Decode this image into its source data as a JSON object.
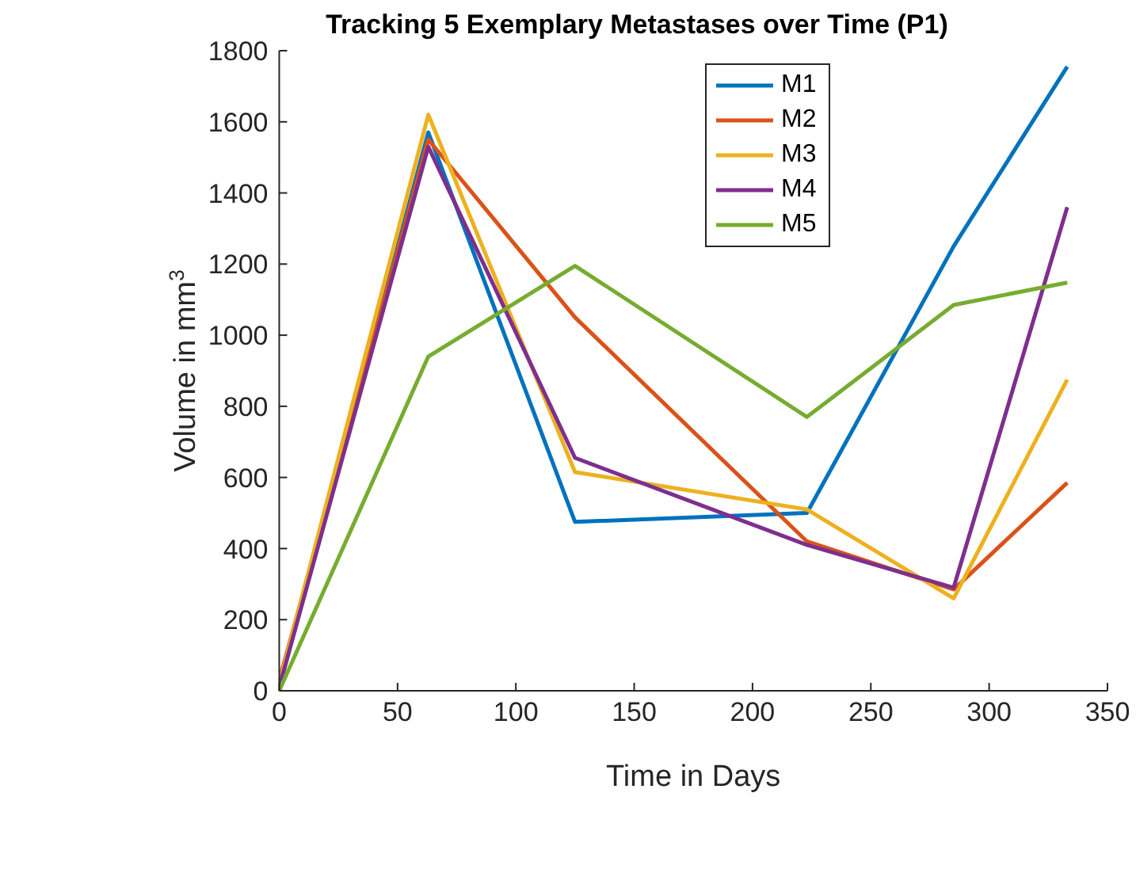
{
  "chart_data": {
    "type": "line",
    "title": "Tracking 5 Exemplary Metastases over Time (P1)",
    "xlabel": "Time in Days",
    "ylabel": "Volume in mm$^{3}$",
    "x": [
      0,
      63,
      125,
      223,
      285,
      333
    ],
    "series": [
      {
        "name": "M1",
        "color": "#0072bd",
        "values": [
          10,
          1570,
          475,
          500,
          1250,
          1755
        ]
      },
      {
        "name": "M2",
        "color": "#d95319",
        "values": [
          30,
          1550,
          1050,
          420,
          285,
          585
        ]
      },
      {
        "name": "M3",
        "color": "#edb120",
        "values": [
          20,
          1620,
          615,
          510,
          260,
          875
        ]
      },
      {
        "name": "M4",
        "color": "#7e2f8e",
        "values": [
          10,
          1530,
          655,
          410,
          290,
          1360
        ]
      },
      {
        "name": "M5",
        "color": "#77ac30",
        "values": [
          0,
          940,
          1195,
          770,
          1085,
          1148
        ]
      }
    ],
    "xlim": [
      0,
      350
    ],
    "xticks": [
      0,
      50,
      100,
      150,
      200,
      250,
      300,
      350
    ],
    "ylim": [
      0,
      1800
    ],
    "yticks": [
      0,
      200,
      400,
      600,
      800,
      1000,
      1200,
      1400,
      1600,
      1800
    ],
    "grid": false,
    "legend": "top right",
    "marker": "none",
    "line_style": "solid"
  }
}
